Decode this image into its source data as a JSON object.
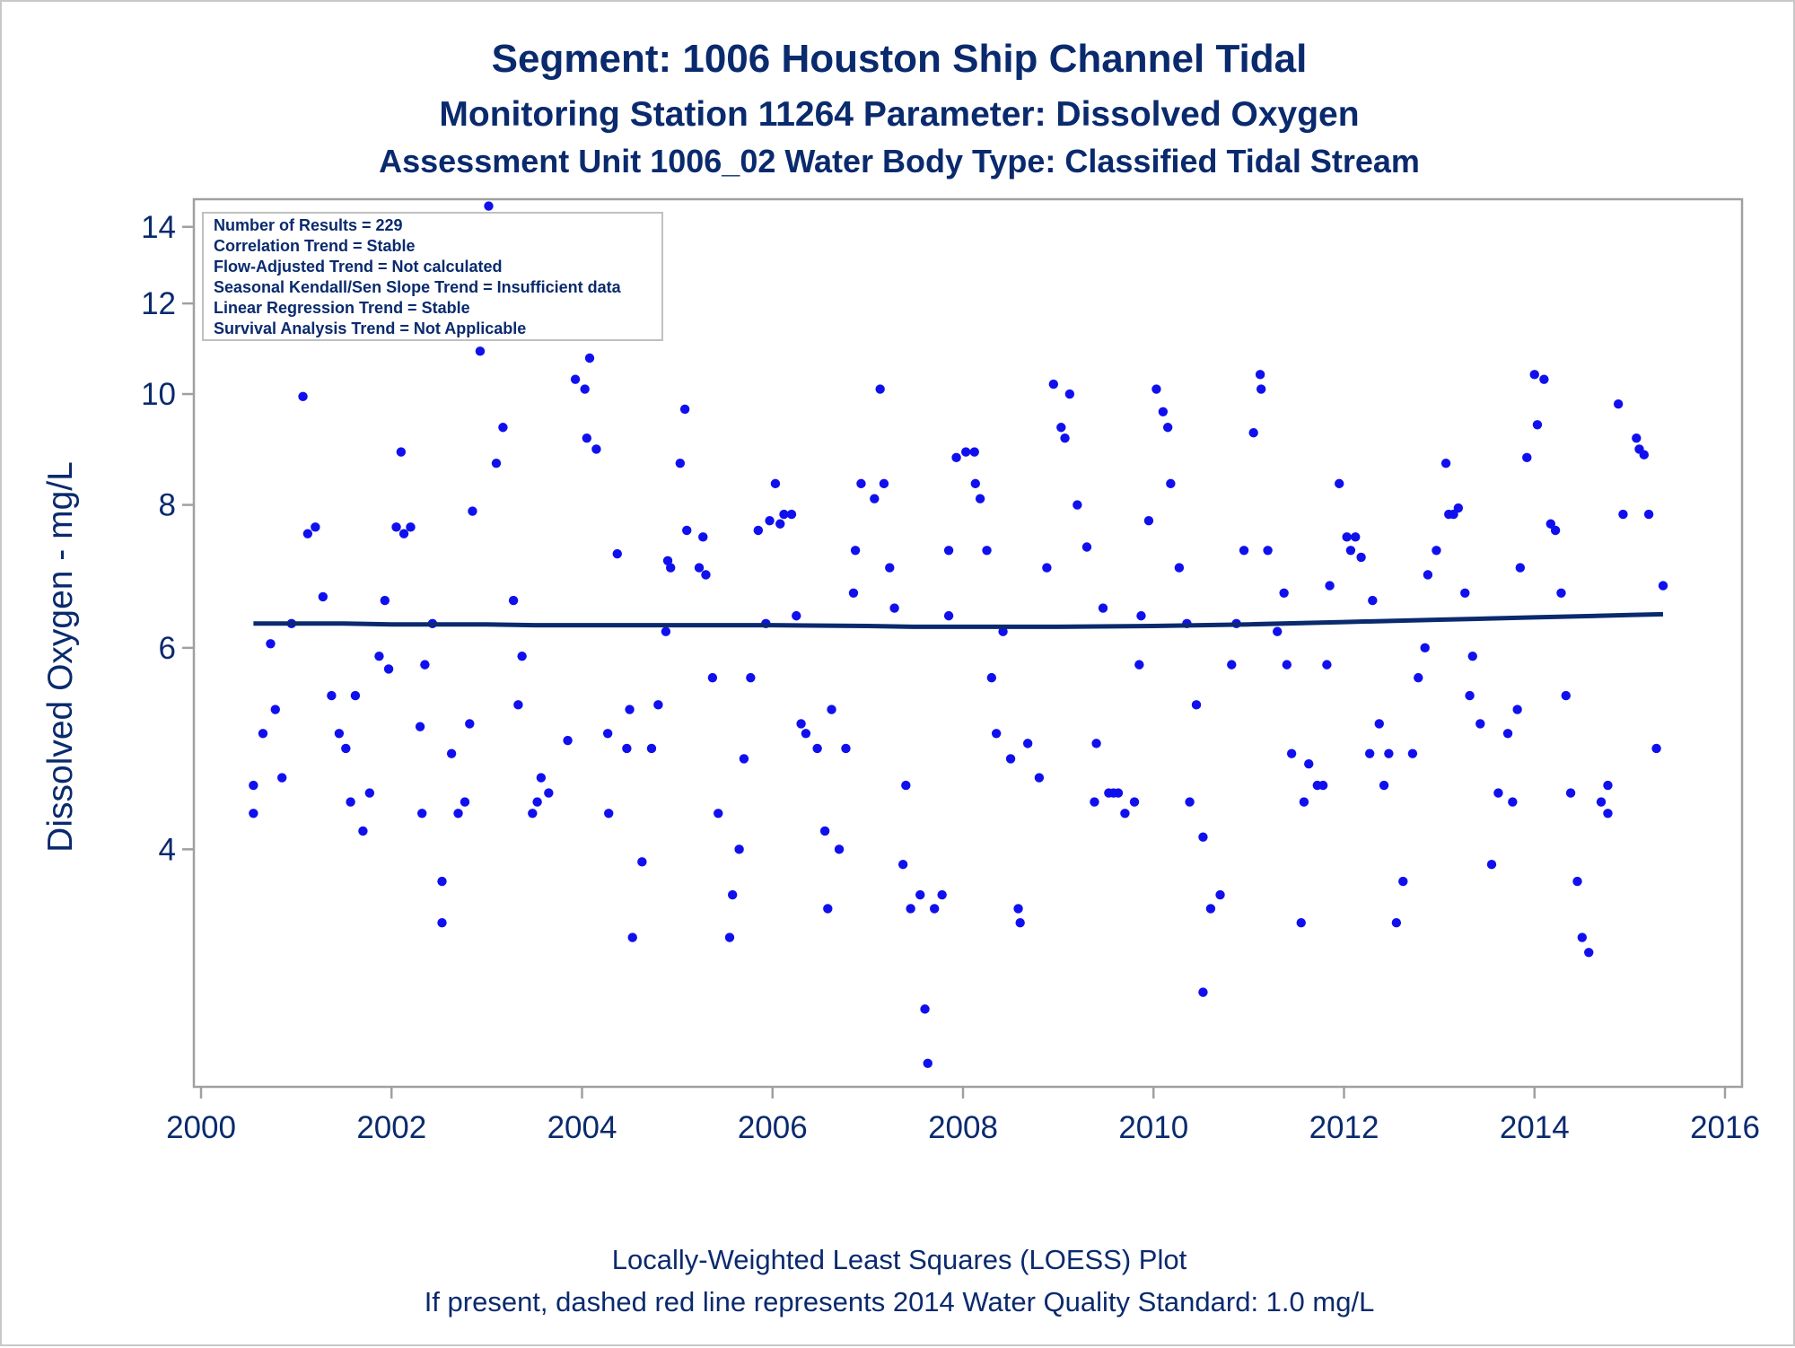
{
  "chart_data": {
    "type": "scatter",
    "title": "Segment: 1006  Houston Ship Channel Tidal",
    "subtitle": "Monitoring Station 11264 Parameter: Dissolved Oxygen",
    "subtitle2": "Assessment Unit 1006_02   Water Body Type: Classified Tidal Stream",
    "xlabel": "",
    "ylabel": "Dissolved Oxygen - mg/L",
    "y_scale": "log",
    "xlim": [
      2000,
      2016
    ],
    "ylim": [
      2.48,
      14.8
    ],
    "x_ticks": [
      2000,
      2002,
      2004,
      2006,
      2008,
      2010,
      2012,
      2014,
      2016
    ],
    "y_ticks": [
      4,
      6,
      8,
      10,
      12,
      14
    ],
    "grid": false,
    "colors": {
      "points": "#1010ee",
      "trend": "#0a2a6e",
      "text": "#0a2a6e",
      "frame": "#a0a0a0"
    },
    "inset_lines": [
      "Number of Results = 229",
      "Correlation Trend = Stable",
      "Flow-Adjusted Trend = Not calculated",
      "Seasonal Kendall/Sen Slope Trend = Insufficient data",
      "Linear Regression Trend = Stable",
      "Survival Analysis Trend = Not Applicable"
    ],
    "footnotes": [
      "Locally-Weighted Least Squares (LOESS) Plot",
      "If present, dashed red line represents 2014 Water Quality Standard: 1.0 mg/L"
    ],
    "trend_line": {
      "x": [
        2000.55,
        2001.0,
        2001.5,
        2002.0,
        2002.5,
        2003.0,
        2003.5,
        2004.0,
        2005.0,
        2006.0,
        2007.0,
        2007.5,
        2008.0,
        2009.0,
        2010.0,
        2011.0,
        2012.0,
        2013.0,
        2014.0,
        2015.0,
        2015.35
      ],
      "y": [
        6.3,
        6.3,
        6.3,
        6.29,
        6.29,
        6.29,
        6.28,
        6.28,
        6.28,
        6.28,
        6.27,
        6.26,
        6.26,
        6.26,
        6.27,
        6.29,
        6.32,
        6.35,
        6.38,
        6.41,
        6.42
      ]
    },
    "points": [
      {
        "x": 2000.55,
        "y": 4.55
      },
      {
        "x": 2000.55,
        "y": 4.3
      },
      {
        "x": 2000.65,
        "y": 5.05
      },
      {
        "x": 2000.73,
        "y": 6.05
      },
      {
        "x": 2000.78,
        "y": 5.3
      },
      {
        "x": 2000.85,
        "y": 4.62
      },
      {
        "x": 2000.95,
        "y": 6.3
      },
      {
        "x": 2001.02,
        "y": 11.4
      },
      {
        "x": 2001.07,
        "y": 9.95
      },
      {
        "x": 2001.12,
        "y": 7.55
      },
      {
        "x": 2001.2,
        "y": 7.65
      },
      {
        "x": 2001.28,
        "y": 6.65
      },
      {
        "x": 2001.37,
        "y": 5.45
      },
      {
        "x": 2001.45,
        "y": 5.05
      },
      {
        "x": 2001.52,
        "y": 4.9
      },
      {
        "x": 2001.57,
        "y": 4.4
      },
      {
        "x": 2001.62,
        "y": 5.45
      },
      {
        "x": 2001.7,
        "y": 4.15
      },
      {
        "x": 2001.77,
        "y": 4.48
      },
      {
        "x": 2001.87,
        "y": 5.9
      },
      {
        "x": 2001.93,
        "y": 6.6
      },
      {
        "x": 2001.97,
        "y": 5.75
      },
      {
        "x": 2002.05,
        "y": 7.65
      },
      {
        "x": 2002.1,
        "y": 8.9
      },
      {
        "x": 2002.13,
        "y": 7.55
      },
      {
        "x": 2002.2,
        "y": 7.65
      },
      {
        "x": 2002.3,
        "y": 5.12
      },
      {
        "x": 2002.32,
        "y": 4.3
      },
      {
        "x": 2002.35,
        "y": 5.8
      },
      {
        "x": 2002.43,
        "y": 6.3
      },
      {
        "x": 2002.53,
        "y": 3.75
      },
      {
        "x": 2002.53,
        "y": 3.45
      },
      {
        "x": 2002.63,
        "y": 4.85
      },
      {
        "x": 2002.7,
        "y": 4.3
      },
      {
        "x": 2002.77,
        "y": 4.4
      },
      {
        "x": 2002.82,
        "y": 5.15
      },
      {
        "x": 2002.85,
        "y": 7.9
      },
      {
        "x": 2002.93,
        "y": 10.9
      },
      {
        "x": 2003.02,
        "y": 14.6
      },
      {
        "x": 2003.1,
        "y": 8.7
      },
      {
        "x": 2003.17,
        "y": 9.35
      },
      {
        "x": 2003.28,
        "y": 6.6
      },
      {
        "x": 2003.33,
        "y": 5.35
      },
      {
        "x": 2003.37,
        "y": 5.9
      },
      {
        "x": 2003.48,
        "y": 4.3
      },
      {
        "x": 2003.53,
        "y": 4.4
      },
      {
        "x": 2003.57,
        "y": 4.62
      },
      {
        "x": 2003.65,
        "y": 4.48
      },
      {
        "x": 2003.85,
        "y": 4.98
      },
      {
        "x": 2003.93,
        "y": 10.3
      },
      {
        "x": 2004.03,
        "y": 10.1
      },
      {
        "x": 2004.05,
        "y": 9.15
      },
      {
        "x": 2004.08,
        "y": 10.75
      },
      {
        "x": 2004.15,
        "y": 8.95
      },
      {
        "x": 2004.27,
        "y": 5.05
      },
      {
        "x": 2004.28,
        "y": 4.3
      },
      {
        "x": 2004.37,
        "y": 7.25
      },
      {
        "x": 2004.47,
        "y": 4.9
      },
      {
        "x": 2004.5,
        "y": 5.3
      },
      {
        "x": 2004.53,
        "y": 3.35
      },
      {
        "x": 2004.63,
        "y": 3.9
      },
      {
        "x": 2004.73,
        "y": 4.9
      },
      {
        "x": 2004.8,
        "y": 5.35
      },
      {
        "x": 2004.88,
        "y": 6.2
      },
      {
        "x": 2004.9,
        "y": 7.15
      },
      {
        "x": 2004.93,
        "y": 7.05
      },
      {
        "x": 2005.03,
        "y": 8.7
      },
      {
        "x": 2005.08,
        "y": 9.7
      },
      {
        "x": 2005.1,
        "y": 7.6
      },
      {
        "x": 2005.23,
        "y": 7.05
      },
      {
        "x": 2005.27,
        "y": 7.5
      },
      {
        "x": 2005.3,
        "y": 6.95
      },
      {
        "x": 2005.37,
        "y": 5.65
      },
      {
        "x": 2005.43,
        "y": 4.3
      },
      {
        "x": 2005.55,
        "y": 3.35
      },
      {
        "x": 2005.58,
        "y": 3.65
      },
      {
        "x": 2005.65,
        "y": 4.0
      },
      {
        "x": 2005.7,
        "y": 4.8
      },
      {
        "x": 2005.77,
        "y": 5.65
      },
      {
        "x": 2005.85,
        "y": 7.6
      },
      {
        "x": 2005.93,
        "y": 6.3
      },
      {
        "x": 2005.97,
        "y": 7.75
      },
      {
        "x": 2006.03,
        "y": 8.35
      },
      {
        "x": 2006.08,
        "y": 7.7
      },
      {
        "x": 2006.12,
        "y": 7.85
      },
      {
        "x": 2006.2,
        "y": 7.85
      },
      {
        "x": 2006.25,
        "y": 6.4
      },
      {
        "x": 2006.3,
        "y": 5.15
      },
      {
        "x": 2006.35,
        "y": 5.05
      },
      {
        "x": 2006.47,
        "y": 4.9
      },
      {
        "x": 2006.55,
        "y": 4.15
      },
      {
        "x": 2006.58,
        "y": 3.55
      },
      {
        "x": 2006.62,
        "y": 5.3
      },
      {
        "x": 2006.7,
        "y": 4.0
      },
      {
        "x": 2006.77,
        "y": 4.9
      },
      {
        "x": 2006.85,
        "y": 6.7
      },
      {
        "x": 2006.87,
        "y": 7.3
      },
      {
        "x": 2006.93,
        "y": 8.35
      },
      {
        "x": 2007.07,
        "y": 8.1
      },
      {
        "x": 2007.13,
        "y": 10.1
      },
      {
        "x": 2007.17,
        "y": 8.35
      },
      {
        "x": 2007.23,
        "y": 7.05
      },
      {
        "x": 2007.28,
        "y": 6.5
      },
      {
        "x": 2007.37,
        "y": 3.88
      },
      {
        "x": 2007.4,
        "y": 4.55
      },
      {
        "x": 2007.45,
        "y": 3.55
      },
      {
        "x": 2007.55,
        "y": 3.65
      },
      {
        "x": 2007.6,
        "y": 2.9
      },
      {
        "x": 2007.63,
        "y": 2.6
      },
      {
        "x": 2007.7,
        "y": 3.55
      },
      {
        "x": 2007.78,
        "y": 3.65
      },
      {
        "x": 2007.85,
        "y": 7.3
      },
      {
        "x": 2007.85,
        "y": 6.4
      },
      {
        "x": 2007.93,
        "y": 8.8
      },
      {
        "x": 2008.03,
        "y": 8.9
      },
      {
        "x": 2008.12,
        "y": 8.9
      },
      {
        "x": 2008.13,
        "y": 8.35
      },
      {
        "x": 2008.18,
        "y": 8.1
      },
      {
        "x": 2008.25,
        "y": 7.3
      },
      {
        "x": 2008.3,
        "y": 5.65
      },
      {
        "x": 2008.35,
        "y": 5.05
      },
      {
        "x": 2008.42,
        "y": 6.2
      },
      {
        "x": 2008.5,
        "y": 4.8
      },
      {
        "x": 2008.58,
        "y": 3.55
      },
      {
        "x": 2008.6,
        "y": 3.45
      },
      {
        "x": 2008.68,
        "y": 4.95
      },
      {
        "x": 2008.8,
        "y": 4.62
      },
      {
        "x": 2008.88,
        "y": 7.05
      },
      {
        "x": 2008.95,
        "y": 10.2
      },
      {
        "x": 2009.03,
        "y": 9.35
      },
      {
        "x": 2009.07,
        "y": 9.15
      },
      {
        "x": 2009.12,
        "y": 10.0
      },
      {
        "x": 2009.2,
        "y": 8.0
      },
      {
        "x": 2009.3,
        "y": 7.35
      },
      {
        "x": 2009.38,
        "y": 4.4
      },
      {
        "x": 2009.4,
        "y": 4.95
      },
      {
        "x": 2009.47,
        "y": 6.5
      },
      {
        "x": 2009.53,
        "y": 4.48
      },
      {
        "x": 2009.58,
        "y": 4.48
      },
      {
        "x": 2009.63,
        "y": 4.48
      },
      {
        "x": 2009.7,
        "y": 4.3
      },
      {
        "x": 2009.8,
        "y": 4.4
      },
      {
        "x": 2009.85,
        "y": 5.8
      },
      {
        "x": 2009.87,
        "y": 6.4
      },
      {
        "x": 2009.95,
        "y": 7.75
      },
      {
        "x": 2010.03,
        "y": 10.1
      },
      {
        "x": 2010.1,
        "y": 9.65
      },
      {
        "x": 2010.15,
        "y": 9.35
      },
      {
        "x": 2010.18,
        "y": 8.35
      },
      {
        "x": 2010.27,
        "y": 7.05
      },
      {
        "x": 2010.35,
        "y": 6.3
      },
      {
        "x": 2010.38,
        "y": 4.4
      },
      {
        "x": 2010.45,
        "y": 5.35
      },
      {
        "x": 2010.52,
        "y": 4.1
      },
      {
        "x": 2010.52,
        "y": 3.0
      },
      {
        "x": 2010.6,
        "y": 3.55
      },
      {
        "x": 2010.7,
        "y": 3.65
      },
      {
        "x": 2010.82,
        "y": 5.8
      },
      {
        "x": 2010.87,
        "y": 6.3
      },
      {
        "x": 2010.95,
        "y": 7.3
      },
      {
        "x": 2011.05,
        "y": 9.25
      },
      {
        "x": 2011.12,
        "y": 10.4
      },
      {
        "x": 2011.13,
        "y": 10.1
      },
      {
        "x": 2011.2,
        "y": 7.3
      },
      {
        "x": 2011.3,
        "y": 6.2
      },
      {
        "x": 2011.37,
        "y": 6.7
      },
      {
        "x": 2011.4,
        "y": 5.8
      },
      {
        "x": 2011.45,
        "y": 4.85
      },
      {
        "x": 2011.55,
        "y": 3.45
      },
      {
        "x": 2011.58,
        "y": 4.4
      },
      {
        "x": 2011.63,
        "y": 4.75
      },
      {
        "x": 2011.72,
        "y": 4.55
      },
      {
        "x": 2011.78,
        "y": 4.55
      },
      {
        "x": 2011.82,
        "y": 5.8
      },
      {
        "x": 2011.85,
        "y": 6.8
      },
      {
        "x": 2011.95,
        "y": 8.35
      },
      {
        "x": 2012.03,
        "y": 7.5
      },
      {
        "x": 2012.07,
        "y": 7.3
      },
      {
        "x": 2012.12,
        "y": 7.5
      },
      {
        "x": 2012.18,
        "y": 7.2
      },
      {
        "x": 2012.27,
        "y": 4.85
      },
      {
        "x": 2012.3,
        "y": 6.6
      },
      {
        "x": 2012.37,
        "y": 5.15
      },
      {
        "x": 2012.42,
        "y": 4.55
      },
      {
        "x": 2012.47,
        "y": 4.85
      },
      {
        "x": 2012.55,
        "y": 3.45
      },
      {
        "x": 2012.62,
        "y": 3.75
      },
      {
        "x": 2012.72,
        "y": 4.85
      },
      {
        "x": 2012.78,
        "y": 5.65
      },
      {
        "x": 2012.85,
        "y": 6.0
      },
      {
        "x": 2012.88,
        "y": 6.95
      },
      {
        "x": 2012.97,
        "y": 7.3
      },
      {
        "x": 2013.07,
        "y": 8.7
      },
      {
        "x": 2013.1,
        "y": 7.85
      },
      {
        "x": 2013.15,
        "y": 7.85
      },
      {
        "x": 2013.2,
        "y": 7.95
      },
      {
        "x": 2013.27,
        "y": 6.7
      },
      {
        "x": 2013.32,
        "y": 5.45
      },
      {
        "x": 2013.35,
        "y": 5.9
      },
      {
        "x": 2013.43,
        "y": 5.15
      },
      {
        "x": 2013.55,
        "y": 3.88
      },
      {
        "x": 2013.62,
        "y": 4.48
      },
      {
        "x": 2013.72,
        "y": 5.05
      },
      {
        "x": 2013.77,
        "y": 4.4
      },
      {
        "x": 2013.82,
        "y": 5.3
      },
      {
        "x": 2013.85,
        "y": 7.05
      },
      {
        "x": 2013.92,
        "y": 8.8
      },
      {
        "x": 2014.0,
        "y": 10.4
      },
      {
        "x": 2014.03,
        "y": 9.4
      },
      {
        "x": 2014.1,
        "y": 10.3
      },
      {
        "x": 2014.17,
        "y": 7.7
      },
      {
        "x": 2014.22,
        "y": 7.6
      },
      {
        "x": 2014.28,
        "y": 6.7
      },
      {
        "x": 2014.33,
        "y": 5.45
      },
      {
        "x": 2014.38,
        "y": 4.48
      },
      {
        "x": 2014.45,
        "y": 3.75
      },
      {
        "x": 2014.5,
        "y": 3.35
      },
      {
        "x": 2014.57,
        "y": 3.25
      },
      {
        "x": 2014.7,
        "y": 4.4
      },
      {
        "x": 2014.77,
        "y": 4.55
      },
      {
        "x": 2014.77,
        "y": 4.3
      },
      {
        "x": 2014.88,
        "y": 9.8
      },
      {
        "x": 2014.93,
        "y": 7.85
      },
      {
        "x": 2015.07,
        "y": 9.15
      },
      {
        "x": 2015.1,
        "y": 8.95
      },
      {
        "x": 2015.15,
        "y": 8.85
      },
      {
        "x": 2015.2,
        "y": 7.85
      },
      {
        "x": 2015.28,
        "y": 4.9
      },
      {
        "x": 2015.35,
        "y": 6.8
      }
    ]
  }
}
